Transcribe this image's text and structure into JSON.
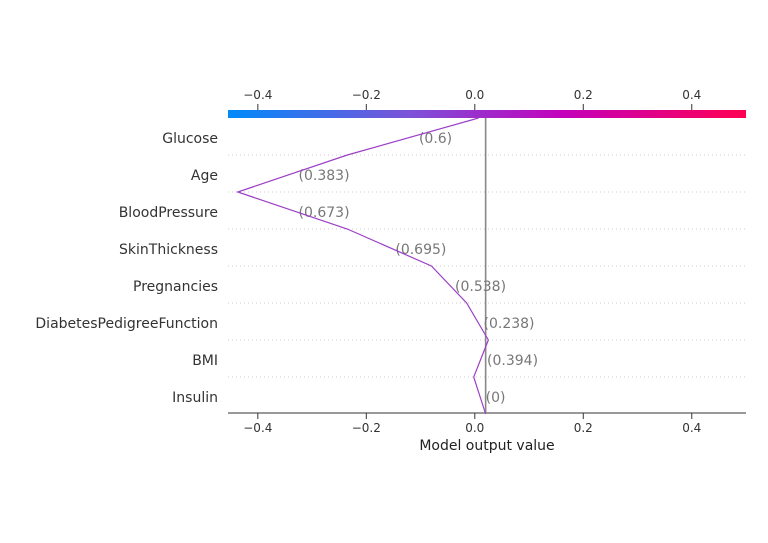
{
  "chart_data": {
    "type": "line",
    "subtype": "shap-decision-plot",
    "title": "",
    "xlabel": "Model output value",
    "ylabel": "",
    "xlim": [
      -0.455,
      0.5
    ],
    "xticks": [
      -0.4,
      -0.2,
      0.0,
      0.2,
      0.4
    ],
    "xtick_labels": [
      "−0.4",
      "−0.2",
      "0.0",
      "0.2",
      "0.4"
    ],
    "base_value": 0.02,
    "features": [
      {
        "name": "Glucose",
        "value_label": "(0.6)"
      },
      {
        "name": "Age",
        "value_label": "(0.383)"
      },
      {
        "name": "BloodPressure",
        "value_label": "(0.673)"
      },
      {
        "name": "SkinThickness",
        "value_label": "(0.695)"
      },
      {
        "name": "Pregnancies",
        "value_label": "(0.538)"
      },
      {
        "name": "DiabetesPedigreeFunction",
        "value_label": "(0.238)"
      },
      {
        "name": "BMI",
        "value_label": "(0.394)"
      },
      {
        "name": "Insulin",
        "value_label": "(0)"
      }
    ],
    "path_x": [
      0.007,
      -0.235,
      -0.437,
      -0.235,
      -0.08,
      -0.015,
      0.025,
      -0.002,
      0.02
    ],
    "colorbar": {
      "colors": [
        "#008bfb",
        "#7c52d8",
        "#c400ba",
        "#ff0052"
      ],
      "range": [
        -0.455,
        0.5
      ]
    },
    "colors": {
      "line": "#9c3fc7",
      "base_line": "#888888",
      "grid": "#cccccc",
      "axis": "#333333"
    },
    "grid": true
  }
}
